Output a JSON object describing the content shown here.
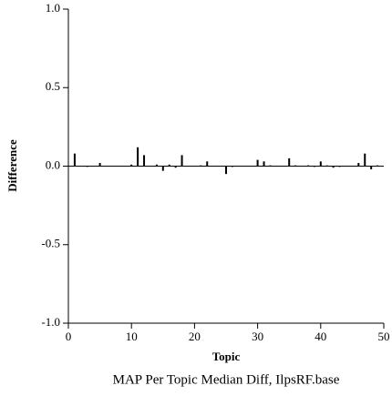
{
  "chart_data": {
    "type": "bar",
    "title": "MAP Per Topic Median Diff, IlpsRF.base",
    "x_label": "Topic",
    "y_label": "Difference",
    "x": [
      1,
      2,
      3,
      4,
      5,
      6,
      7,
      8,
      9,
      10,
      11,
      12,
      13,
      14,
      15,
      16,
      17,
      18,
      19,
      20,
      21,
      22,
      23,
      24,
      25,
      26,
      27,
      28,
      29,
      30,
      31,
      32,
      33,
      34,
      35,
      36,
      37,
      38,
      39,
      40,
      41,
      42,
      43,
      44,
      45,
      46,
      47,
      48,
      49,
      50
    ],
    "values": [
      0.08,
      0,
      -0.005,
      0,
      0.02,
      0,
      0,
      0,
      0,
      0.01,
      0.12,
      0.07,
      0,
      0.01,
      -0.03,
      0.01,
      -0.01,
      0.07,
      0,
      0,
      0.005,
      0.03,
      0,
      0,
      -0.05,
      -0.005,
      0,
      0,
      0,
      0.04,
      0.03,
      0.005,
      0,
      0,
      0.05,
      0.005,
      0,
      0.005,
      -0.005,
      0.03,
      0.005,
      -0.01,
      -0.005,
      0,
      0,
      0.02,
      0.08,
      -0.02,
      0.005,
      0
    ],
    "color": "#000000",
    "xlim": [
      0,
      50
    ],
    "xticks": [
      0,
      10,
      20,
      30,
      40,
      50
    ],
    "ylim": [
      -1,
      1
    ],
    "yticks": [
      {
        "value": -1,
        "label": "-1.0"
      },
      -0.5,
      {
        "value": 0,
        "label": "0.0"
      },
      0.5,
      {
        "value": 1,
        "label": "1.0"
      }
    ]
  }
}
